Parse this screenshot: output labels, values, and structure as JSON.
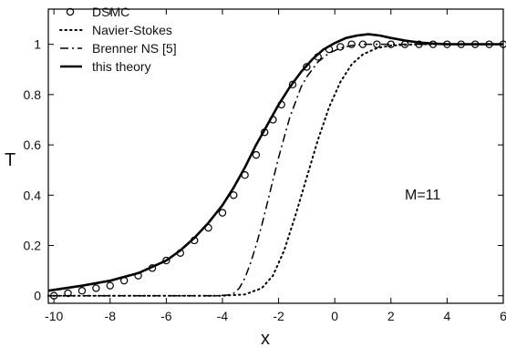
{
  "chart_data": {
    "type": "line",
    "xlabel": "x",
    "ylabel": "T",
    "xlim": [
      -10.2,
      6.0
    ],
    "ylim": [
      -0.03,
      1.14
    ],
    "x_ticks": [
      "-10",
      "-8",
      "-6",
      "-4",
      "-2",
      "0",
      "2",
      "4",
      "6"
    ],
    "y_ticks": [
      "0",
      "0.2",
      "0.4",
      "0.6",
      "0.8",
      "1"
    ],
    "grid": false,
    "legend_position": "top-left",
    "annotation": "M=11",
    "series": [
      {
        "name": "DSMC",
        "style": "circle-markers",
        "x": [
          -10.0,
          -9.5,
          -9.0,
          -8.5,
          -8.0,
          -7.5,
          -7.0,
          -6.5,
          -6.0,
          -5.5,
          -5.0,
          -4.5,
          -4.0,
          -3.6,
          -3.2,
          -2.8,
          -2.5,
          -2.2,
          -1.9,
          -1.5,
          -1.0,
          -0.6,
          -0.2,
          0.2,
          0.6,
          1.0,
          1.5,
          2.0,
          2.5,
          3.0,
          3.5,
          4.0,
          4.5,
          5.0,
          5.5,
          6.0
        ],
        "y": [
          0.0,
          0.01,
          0.02,
          0.03,
          0.04,
          0.06,
          0.08,
          0.11,
          0.14,
          0.17,
          0.22,
          0.27,
          0.33,
          0.4,
          0.48,
          0.56,
          0.65,
          0.7,
          0.76,
          0.84,
          0.91,
          0.95,
          0.98,
          0.99,
          1.0,
          1.0,
          1.0,
          1.0,
          1.0,
          1.0,
          1.0,
          1.0,
          1.0,
          1.0,
          1.0,
          1.0
        ]
      },
      {
        "name": "Navier-Stokes",
        "style": "dotted",
        "x": [
          -10.2,
          -6.0,
          -4.0,
          -3.2,
          -2.6,
          -2.2,
          -1.8,
          -1.4,
          -1.0,
          -0.6,
          -0.2,
          0.2,
          0.6,
          1.0,
          1.5,
          2.0,
          3.0,
          4.0,
          6.0
        ],
        "y": [
          0.0,
          0.0,
          0.0,
          0.005,
          0.03,
          0.08,
          0.18,
          0.32,
          0.47,
          0.62,
          0.75,
          0.85,
          0.92,
          0.96,
          0.985,
          0.995,
          1.0,
          1.0,
          1.0
        ]
      },
      {
        "name": "Brenner NS  [5]",
        "style": "dash-dot",
        "x": [
          -10.2,
          -6.0,
          -4.2,
          -3.8,
          -3.6,
          -3.4,
          -3.2,
          -3.0,
          -2.8,
          -2.6,
          -2.4,
          -2.2,
          -2.0,
          -1.8,
          -1.6,
          -1.4,
          -1.2,
          -1.0,
          -0.6,
          -0.2,
          0.2,
          0.6,
          1.0,
          1.5,
          2.0,
          3.0,
          4.0,
          6.0
        ],
        "y": [
          0.0,
          0.0,
          0.0,
          0.003,
          0.01,
          0.03,
          0.07,
          0.13,
          0.2,
          0.28,
          0.37,
          0.46,
          0.55,
          0.63,
          0.71,
          0.77,
          0.83,
          0.87,
          0.93,
          0.965,
          0.985,
          0.995,
          1.0,
          1.0,
          1.0,
          1.0,
          1.0,
          1.0
        ]
      },
      {
        "name": "this theory",
        "style": "solid",
        "x": [
          -10.2,
          -9.0,
          -8.0,
          -7.0,
          -6.0,
          -5.5,
          -5.0,
          -4.5,
          -4.0,
          -3.6,
          -3.2,
          -2.8,
          -2.4,
          -2.0,
          -1.6,
          -1.2,
          -0.8,
          -0.4,
          0.0,
          0.4,
          0.8,
          1.2,
          1.6,
          2.0,
          2.5,
          3.0,
          3.5,
          4.0,
          5.0,
          6.0
        ],
        "y": [
          0.02,
          0.04,
          0.06,
          0.09,
          0.14,
          0.18,
          0.23,
          0.29,
          0.36,
          0.43,
          0.51,
          0.6,
          0.68,
          0.76,
          0.83,
          0.89,
          0.94,
          0.98,
          1.005,
          1.025,
          1.035,
          1.04,
          1.035,
          1.025,
          1.015,
          1.007,
          1.003,
          1.0,
          1.0,
          1.0
        ]
      }
    ]
  },
  "colors": {
    "line": "#000000",
    "background": "#ffffff"
  }
}
